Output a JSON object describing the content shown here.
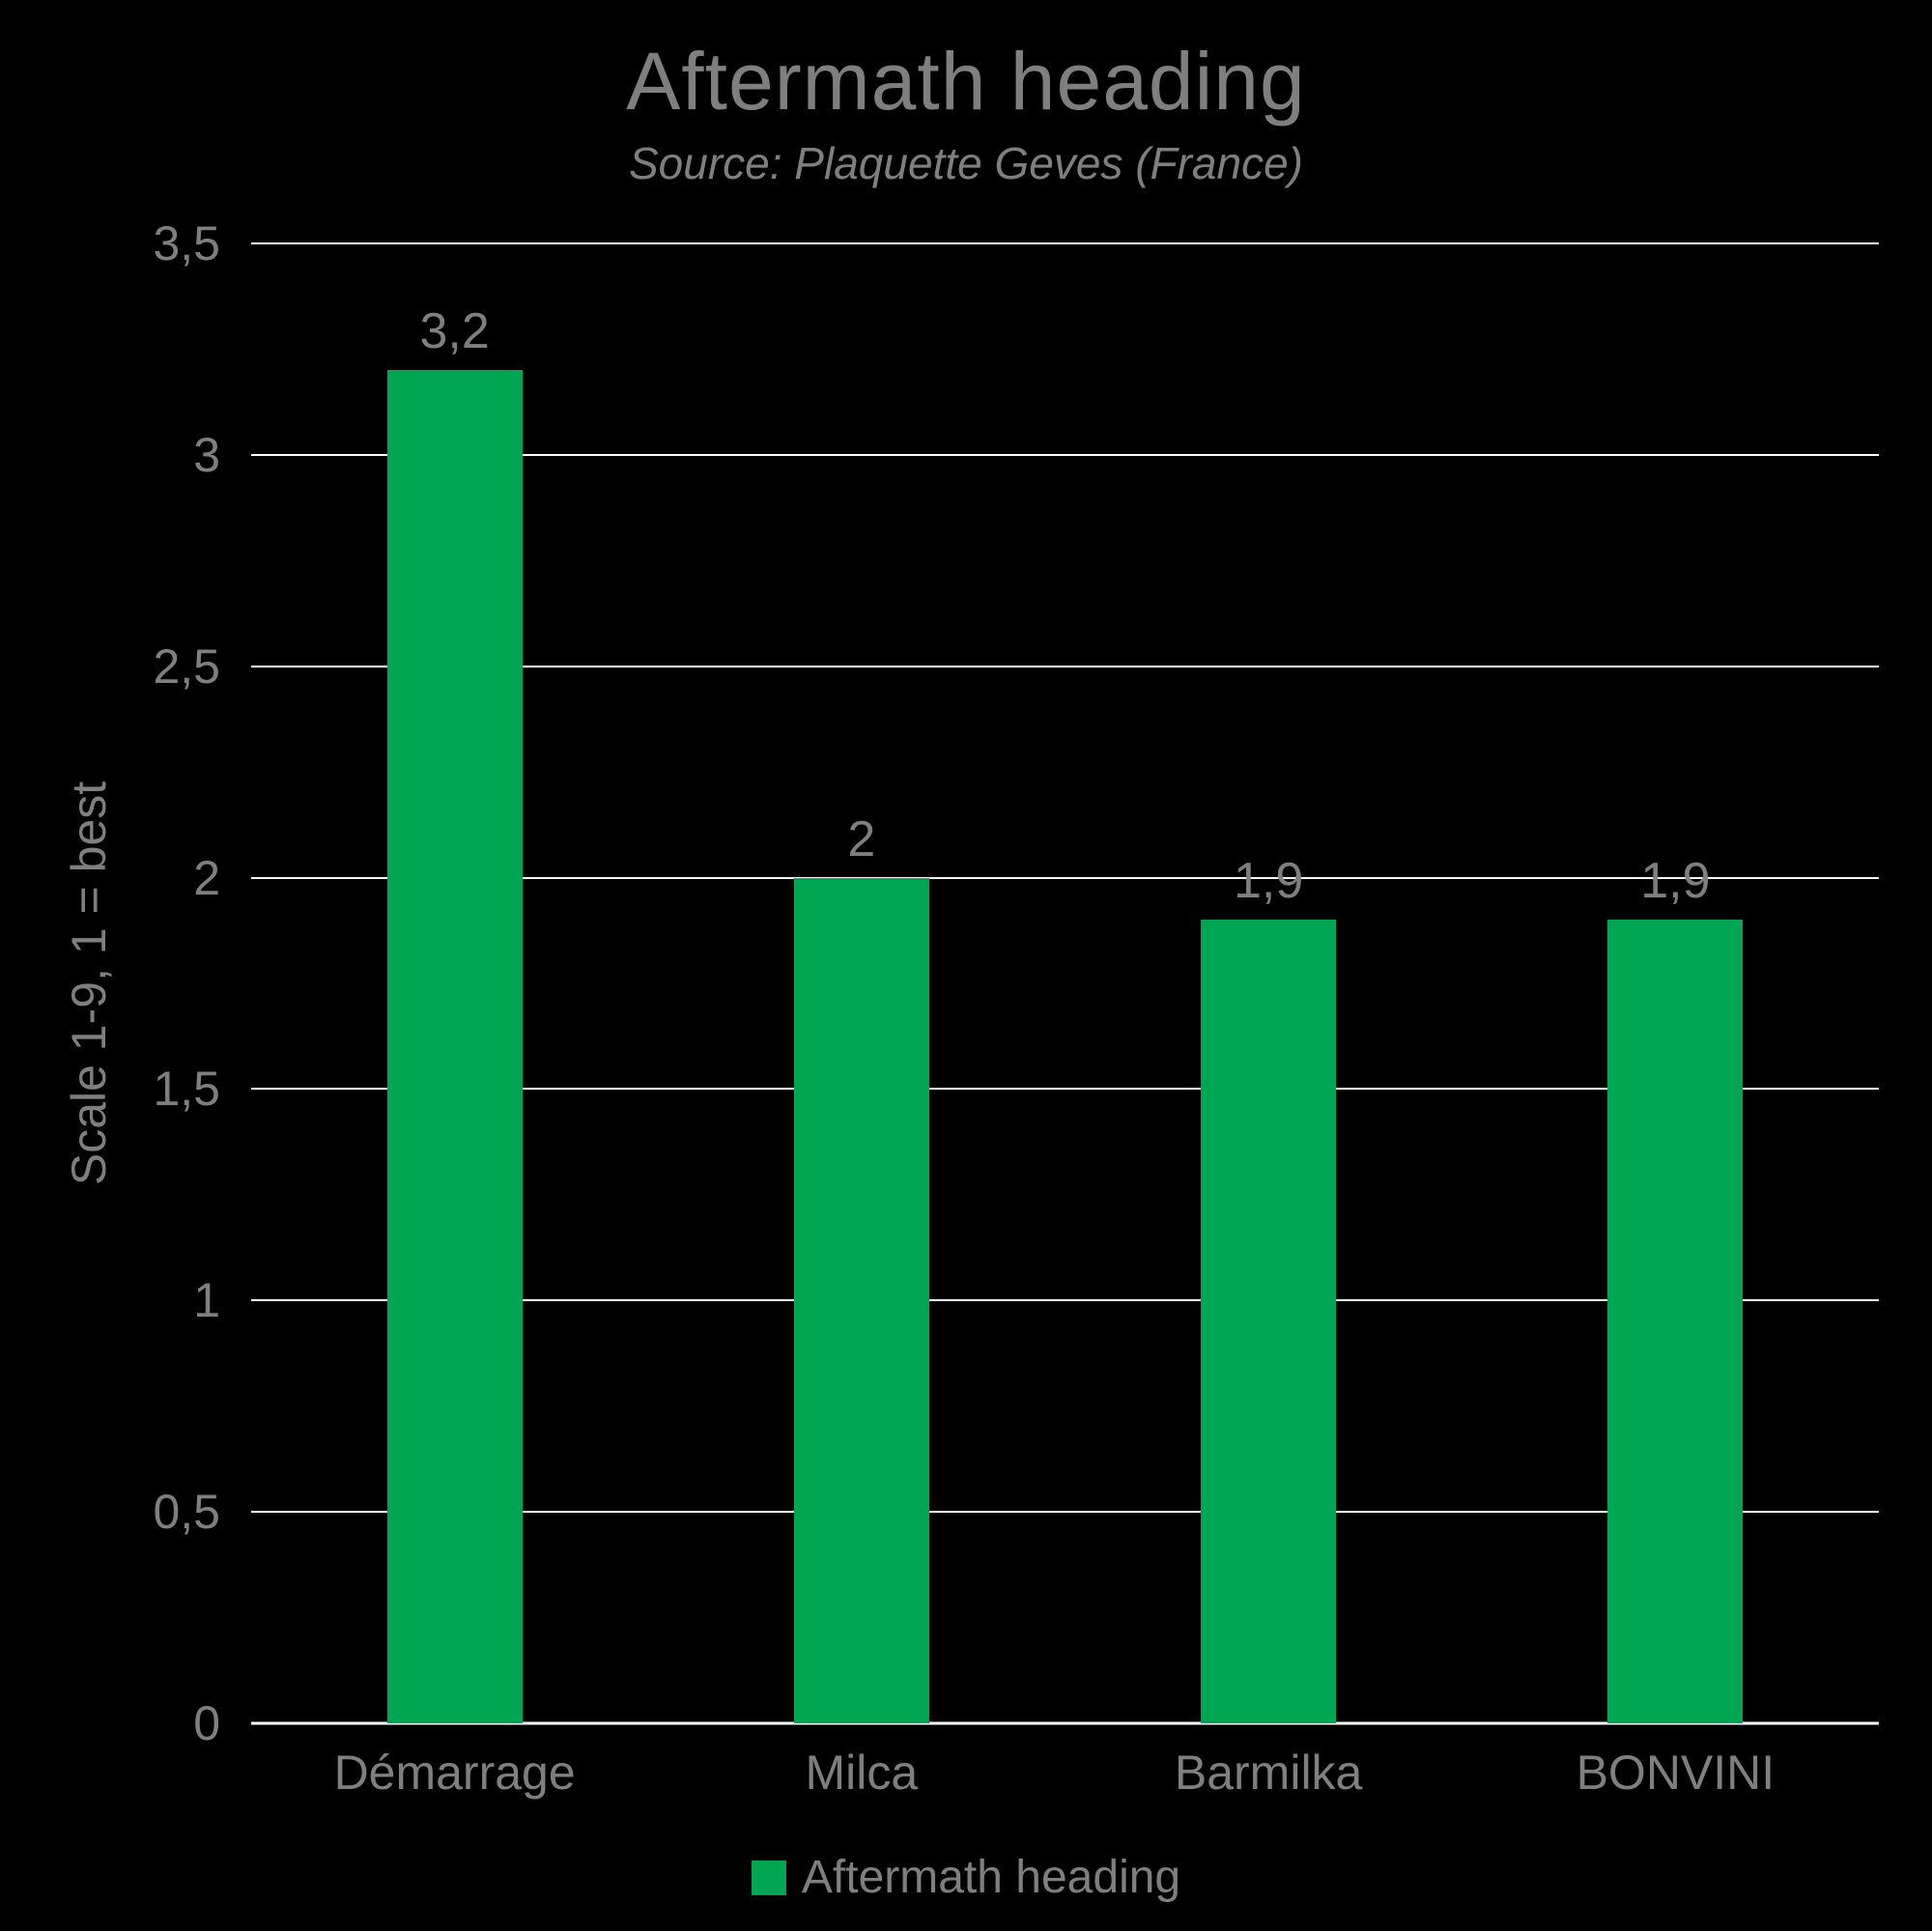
{
  "chart_data": {
    "type": "bar",
    "title": "Aftermath heading",
    "subtitle": "Source: Plaquette Geves (France)",
    "ylabel": "Scale 1-9, 1 = best",
    "xlabel": "",
    "categories": [
      "Démarrage",
      "Milca",
      "Barmilka",
      "BONVINI"
    ],
    "values": [
      3.2,
      2,
      1.9,
      1.9
    ],
    "value_labels": [
      "3,2",
      "2",
      "1,9",
      "1,9"
    ],
    "ylim": [
      0,
      3.5
    ],
    "ytick_values": [
      0,
      0.5,
      1,
      1.5,
      2,
      2.5,
      3,
      3.5
    ],
    "ytick_labels": [
      "0",
      "0,5",
      "1",
      "1,5",
      "2",
      "2,5",
      "3",
      "3,5"
    ],
    "grid": true,
    "legend_position": "bottom",
    "legend": [
      {
        "label": "Aftermath heading",
        "color": "#00a651"
      }
    ],
    "colors": {
      "background": "#000000",
      "bar": "#00a651",
      "text": "#7f7f7f",
      "gridline": "#ffffff",
      "axis_line": "#ffffff"
    }
  }
}
